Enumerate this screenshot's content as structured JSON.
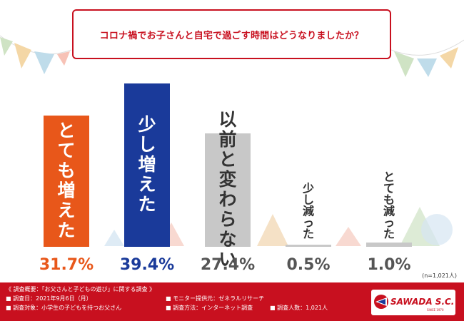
{
  "question": "コロナ禍でお子さんと自宅で過ごす時間はどうなりましたか？",
  "sample_note": "(n=1,021人)",
  "colors": {
    "accent": "#c8101f",
    "orange": "#e8571a",
    "navy": "#1a3a9a",
    "gray": "#c8c8c8",
    "label_orange": "#e8571a",
    "label_navy": "#1a3a9a",
    "label_gray": "#555555"
  },
  "chart_data": {
    "type": "bar",
    "categories": [
      "とても増えた",
      "少し増えた",
      "以前と変わらない",
      "少し減った",
      "とても減った"
    ],
    "values": [
      31.7,
      39.4,
      27.4,
      0.5,
      1.0
    ],
    "value_labels": [
      "31.7%",
      "39.4%",
      "27.4%",
      "0.5%",
      "1.0%"
    ],
    "bar_colors": [
      "#e8571a",
      "#1a3a9a",
      "#c8c8c8",
      "#c8c8c8",
      "#c8c8c8"
    ],
    "label_colors": [
      "#ffffff",
      "#ffffff",
      "#333333",
      "#333333",
      "#333333"
    ],
    "value_label_colors": [
      "#e8571a",
      "#1a3a9a",
      "#555555",
      "#555555",
      "#555555"
    ],
    "ylim": [
      0,
      40
    ],
    "grid": false,
    "legend": "none"
  },
  "footer": {
    "overview": "《 調査概要：「お父さんと子どもの遊び」に関する調査 》",
    "date": "■ 調査日：2021年9月6日（月）",
    "target": "■ 調査対象：小学生の子どもを持つお父さん",
    "provider": "■ モニター提供元：ゼネラルリサーチ",
    "method": "■ 調査方法：インターネット調査",
    "count": "■ 調査人数：1,021人"
  },
  "logo": {
    "name": "SAWADA S.C.",
    "since": "SINCE 1970"
  }
}
